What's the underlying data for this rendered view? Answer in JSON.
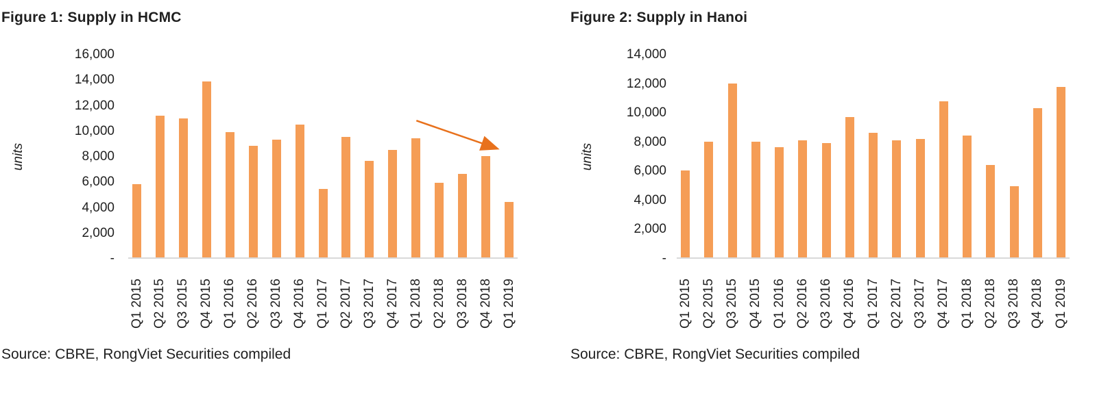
{
  "colors": {
    "bar": "#F59D56",
    "arrow": "#E8711C",
    "axis_line": "#D9D9D9",
    "text": "#1F1F1F"
  },
  "chart_data": [
    {
      "type": "bar",
      "title": "Figure 1: Supply in HCMC",
      "ylabel": "units",
      "xlabel": "",
      "ylim": [
        0,
        16000
      ],
      "y_tick_step": 2000,
      "y_ticks": [
        "16,000",
        "14,000",
        "12,000",
        "10,000",
        "8,000",
        "6,000",
        "4,000",
        "2,000",
        "-"
      ],
      "grid": false,
      "legend": "none",
      "categories": [
        "Q1 2015",
        "Q2 2015",
        "Q3 2015",
        "Q4 2015",
        "Q1 2016",
        "Q2 2016",
        "Q3 2016",
        "Q4 2016",
        "Q1 2017",
        "Q2 2017",
        "Q3 2017",
        "Q4 2017",
        "Q1 2018",
        "Q2 2018",
        "Q3 2018",
        "Q4 2018",
        "Q1 2019"
      ],
      "values": [
        5800,
        11200,
        11000,
        13900,
        9900,
        8800,
        9300,
        10500,
        5400,
        9500,
        7600,
        8500,
        9400,
        5900,
        6600,
        8000,
        4400
      ],
      "annotations": [
        {
          "type": "arrow",
          "meaning": "downward supply trend",
          "x1_frac": 0.74,
          "y1_value": 10800,
          "x2_frac": 0.97,
          "y2_value": 8400
        }
      ],
      "source": "Source: CBRE, RongViet Securities compiled"
    },
    {
      "type": "bar",
      "title": "Figure 2: Supply in Hanoi",
      "ylabel": "units",
      "xlabel": "",
      "ylim": [
        0,
        14000
      ],
      "y_tick_step": 2000,
      "y_ticks": [
        "14,000",
        "12,000",
        "10,000",
        "8,000",
        "6,000",
        "4,000",
        "2,000",
        "-"
      ],
      "grid": false,
      "legend": "none",
      "categories": [
        "Q1 2015",
        "Q2 2015",
        "Q3 2015",
        "Q4 2015",
        "Q1 2016",
        "Q2 2016",
        "Q3 2016",
        "Q4 2016",
        "Q1 2017",
        "Q2 2017",
        "Q3 2017",
        "Q4 2017",
        "Q1 2018",
        "Q2 2018",
        "Q3 2018",
        "Q4 2018",
        "Q1 2019"
      ],
      "values": [
        6000,
        8000,
        12000,
        8000,
        7600,
        8100,
        7900,
        9700,
        8600,
        8100,
        8200,
        10800,
        8400,
        6400,
        4900,
        10300,
        11800
      ],
      "annotations": [],
      "source": "Source: CBRE, RongViet Securities compiled"
    }
  ]
}
